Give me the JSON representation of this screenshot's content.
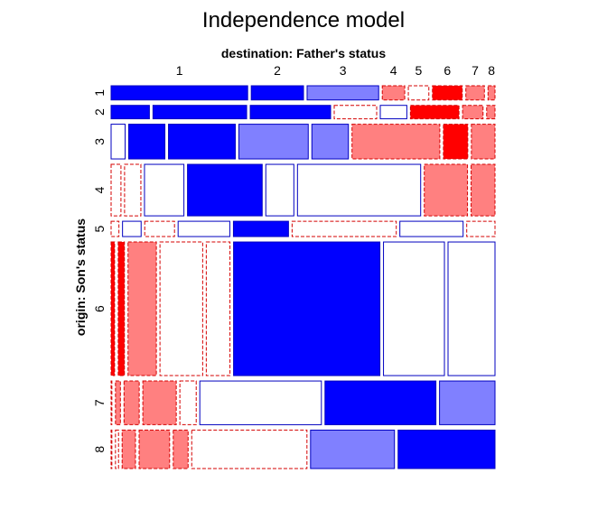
{
  "chart_data": {
    "type": "mosaic",
    "title": "Independence model",
    "xlabel": "destination: Father's status",
    "ylabel": "origin: Son's status",
    "col_categories": [
      "1",
      "2",
      "3",
      "4",
      "5",
      "6",
      "7",
      "8"
    ],
    "row_categories": [
      "1",
      "2",
      "3",
      "4",
      "5",
      "6",
      "7",
      "8"
    ],
    "shading_levels": {
      "strong_positive": "#0000ff",
      "positive": "#8080ff",
      "neutral_positive": "#ffffff",
      "neutral_negative": "#ffffff",
      "negative": "#ff8080",
      "strong_negative": "#ff0000"
    },
    "row_shares": [
      0.038,
      0.036,
      0.093,
      0.138,
      0.041,
      0.358,
      0.117,
      0.103
    ],
    "cells": [
      [
        {
          "v": 0.353,
          "s": "strong_positive"
        },
        {
          "v": 0.135,
          "s": "strong_positive"
        },
        {
          "v": 0.185,
          "s": "positive"
        },
        {
          "v": 0.058,
          "s": "negative"
        },
        {
          "v": 0.053,
          "s": "neutral_negative"
        },
        {
          "v": 0.077,
          "s": "strong_negative"
        },
        {
          "v": 0.048,
          "s": "negative"
        },
        {
          "v": 0.018,
          "s": "negative"
        }
      ],
      [
        {
          "v": 0.101,
          "s": "strong_positive"
        },
        {
          "v": 0.247,
          "s": "strong_positive"
        },
        {
          "v": 0.212,
          "s": "strong_positive"
        },
        {
          "v": 0.112,
          "s": "neutral_negative"
        },
        {
          "v": 0.07,
          "s": "neutral_positive"
        },
        {
          "v": 0.128,
          "s": "strong_negative"
        },
        {
          "v": 0.054,
          "s": "negative"
        },
        {
          "v": 0.022,
          "s": "negative"
        }
      ],
      [
        {
          "v": 0.038,
          "s": "neutral_positive"
        },
        {
          "v": 0.098,
          "s": "strong_positive"
        },
        {
          "v": 0.181,
          "s": "strong_positive"
        },
        {
          "v": 0.188,
          "s": "positive"
        },
        {
          "v": 0.099,
          "s": "positive"
        },
        {
          "v": 0.238,
          "s": "negative"
        },
        {
          "v": 0.066,
          "s": "strong_negative"
        },
        {
          "v": 0.064,
          "s": "negative"
        }
      ],
      [
        {
          "v": 0.026,
          "s": "neutral_negative"
        },
        {
          "v": 0.043,
          "s": "neutral_negative"
        },
        {
          "v": 0.104,
          "s": "neutral_positive"
        },
        {
          "v": 0.197,
          "s": "strong_positive"
        },
        {
          "v": 0.074,
          "s": "neutral_positive"
        },
        {
          "v": 0.325,
          "s": "neutral_positive"
        },
        {
          "v": 0.114,
          "s": "negative"
        },
        {
          "v": 0.063,
          "s": "negative"
        }
      ],
      [
        {
          "v": 0.021,
          "s": "neutral_negative"
        },
        {
          "v": 0.05,
          "s": "neutral_positive"
        },
        {
          "v": 0.08,
          "s": "neutral_negative"
        },
        {
          "v": 0.139,
          "s": "neutral_positive"
        },
        {
          "v": 0.148,
          "s": "strong_positive"
        },
        {
          "v": 0.28,
          "s": "neutral_negative"
        },
        {
          "v": 0.17,
          "s": "neutral_positive"
        },
        {
          "v": 0.076,
          "s": "neutral_negative"
        }
      ],
      [
        {
          "v": 0.009,
          "s": "strong_negative"
        },
        {
          "v": 0.016,
          "s": "strong_negative"
        },
        {
          "v": 0.073,
          "s": "negative"
        },
        {
          "v": 0.11,
          "s": "neutral_negative"
        },
        {
          "v": 0.061,
          "s": "neutral_negative"
        },
        {
          "v": 0.377,
          "s": "strong_positive"
        },
        {
          "v": 0.157,
          "s": "neutral_positive"
        },
        {
          "v": 0.121,
          "s": "neutral_positive"
        }
      ],
      [
        {
          "v": 0.002,
          "s": "neutral_negative"
        },
        {
          "v": 0.013,
          "s": "negative"
        },
        {
          "v": 0.04,
          "s": "negative"
        },
        {
          "v": 0.088,
          "s": "negative"
        },
        {
          "v": 0.043,
          "s": "neutral_negative"
        },
        {
          "v": 0.32,
          "s": "neutral_positive"
        },
        {
          "v": 0.292,
          "s": "strong_positive"
        },
        {
          "v": 0.146,
          "s": "positive"
        }
      ],
      [
        {
          "v": 0.002,
          "s": "neutral_negative"
        },
        {
          "v": 0.008,
          "s": "neutral_negative"
        },
        {
          "v": 0.035,
          "s": "negative"
        },
        {
          "v": 0.08,
          "s": "negative"
        },
        {
          "v": 0.039,
          "s": "negative"
        },
        {
          "v": 0.302,
          "s": "neutral_negative"
        },
        {
          "v": 0.22,
          "s": "positive"
        },
        {
          "v": 0.254,
          "s": "strong_positive"
        }
      ]
    ]
  }
}
